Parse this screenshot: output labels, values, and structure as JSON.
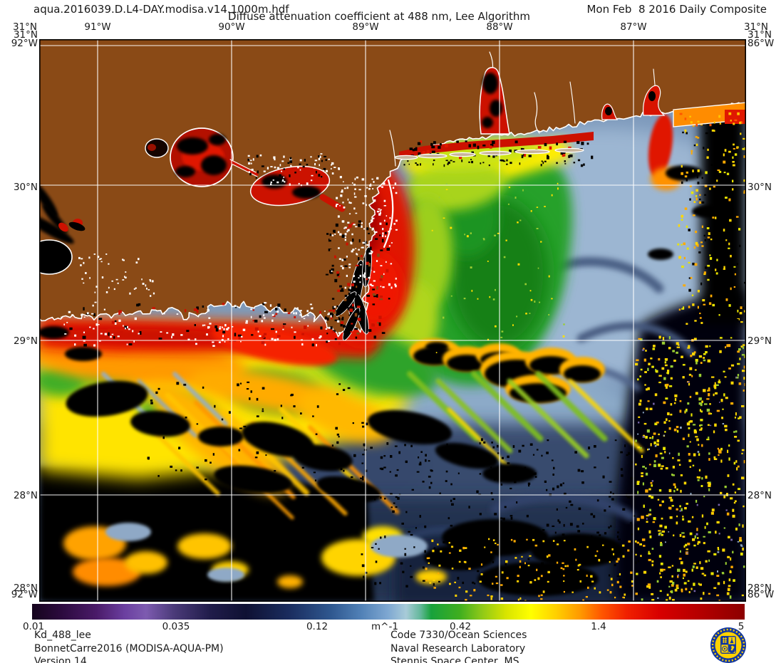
{
  "header": {
    "filename": "aqua.2016039.D.L4-DAY.modisa.v14.1000m.hdf",
    "title": "Diffuse attenuation coefficient at 488 nm, Lee Algorithm",
    "date_label": "Mon Feb  8 2016 Daily Composite"
  },
  "map": {
    "axis_top": [
      "31°N",
      "91°W",
      "90°W",
      "89°W",
      "88°W",
      "87°W",
      "31°N"
    ],
    "axis_left": [
      "31°N",
      "92°W",
      "30°N",
      "29°N",
      "28°N",
      "28°N",
      "92°W"
    ],
    "axis_right": [
      "31°N",
      "86°W",
      "30°N",
      "29°N",
      "28°N",
      "28°N",
      "86°W"
    ]
  },
  "colorbar": {
    "ticks": [
      "0.01",
      "0.035",
      "0.12",
      "m^-1",
      "0.42",
      "1.4",
      "5"
    ],
    "units": "m^-1",
    "stops": [
      {
        "o": 0.0,
        "c": "#15041d"
      },
      {
        "o": 0.04,
        "c": "#2b0a3d"
      },
      {
        "o": 0.09,
        "c": "#4a1a68"
      },
      {
        "o": 0.13,
        "c": "#6b3fa0"
      },
      {
        "o": 0.16,
        "c": "#7d5bb0"
      },
      {
        "o": 0.2,
        "c": "#4a3a78"
      },
      {
        "o": 0.25,
        "c": "#201c4a"
      },
      {
        "o": 0.3,
        "c": "#0f1133"
      },
      {
        "o": 0.36,
        "c": "#1a2c5e"
      },
      {
        "o": 0.42,
        "c": "#2f5890"
      },
      {
        "o": 0.46,
        "c": "#4f7fb5"
      },
      {
        "o": 0.5,
        "c": "#7fa8d2"
      },
      {
        "o": 0.525,
        "c": "#a8cbd8"
      },
      {
        "o": 0.545,
        "c": "#63b89a"
      },
      {
        "o": 0.56,
        "c": "#18a23c"
      },
      {
        "o": 0.6,
        "c": "#3fae1f"
      },
      {
        "o": 0.63,
        "c": "#8cc818"
      },
      {
        "o": 0.665,
        "c": "#d8e400"
      },
      {
        "o": 0.7,
        "c": "#ffff00"
      },
      {
        "o": 0.735,
        "c": "#ffd000"
      },
      {
        "o": 0.77,
        "c": "#ff9800"
      },
      {
        "o": 0.8,
        "c": "#ff5500"
      },
      {
        "o": 0.835,
        "c": "#f02000"
      },
      {
        "o": 0.88,
        "c": "#d80000"
      },
      {
        "o": 0.94,
        "c": "#b30000"
      },
      {
        "o": 1.0,
        "c": "#8c0000"
      }
    ]
  },
  "footer": {
    "product_lines": [
      "Kd_488_lee",
      "BonnetCarre2016 (MODISA-AQUA-PM)",
      "Version 14"
    ],
    "org_lines": [
      "Code 7330/Ocean Sciences",
      "Naval Research Laboratory",
      "Stennis Space Center, MS"
    ],
    "logo_name": "nrl-seal"
  },
  "palette": {
    "land_brown": "#8a4a16",
    "coastline_white": "#ffffff",
    "grid_white": "#ffffff",
    "ocean_blue": "#7d99bb",
    "light_blue": "#9cb6d2",
    "slate_blue": "#4e6288",
    "navy": "#2a3a5e",
    "green": "#27a12b",
    "yellow_green": "#9ccf1d",
    "yellow": "#ffe400",
    "orange": "#ff9a00",
    "red": "#e41800",
    "dark_red": "#a80000",
    "no_data_black": "#000000",
    "logo_blue": "#1237a0",
    "logo_yellow": "#ffd200"
  },
  "chart_data": {
    "type": "heatmap",
    "title": "Diffuse attenuation coefficient at 488 nm, Lee Algorithm",
    "variable": "Kd_488_lee",
    "units": "m^-1",
    "scale": "logarithmic",
    "range": [
      0.01,
      5
    ],
    "colorbar_ticks": [
      0.01,
      0.035,
      0.12,
      0.42,
      1.4,
      5
    ],
    "lat_ticks": [
      "31°N",
      "30°N",
      "29°N",
      "28°N"
    ],
    "lon_ticks": [
      "92°W",
      "91°W",
      "90°W",
      "89°W",
      "88°W",
      "87°W",
      "86°W"
    ],
    "date": "Mon Feb 8 2016",
    "composite": "Daily Composite",
    "legend_position": "bottom"
  }
}
